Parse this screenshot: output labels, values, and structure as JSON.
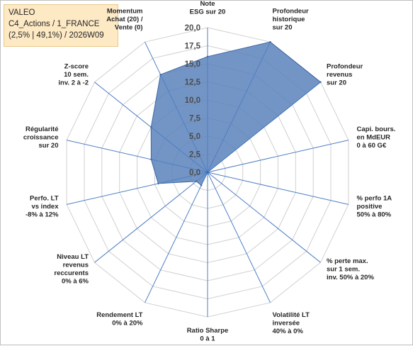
{
  "info": {
    "name": "VALEO",
    "line2": "C4_Actions / 1_FRANCE",
    "line3": "(2,5% | 49,1%) / 2026W09"
  },
  "chart_data": {
    "type": "radar",
    "axes": [
      [
        "Note",
        "ESG sur 20"
      ],
      [
        "Profondeur",
        "historique",
        "sur 20"
      ],
      [
        "Profondeur",
        "revenus",
        "sur 20"
      ],
      [
        "Capi. bours.",
        "en MdEUR",
        "0 à 60 G€"
      ],
      [
        "% perfo 1A",
        "positive",
        "50% à 80%"
      ],
      [
        "% perte max.",
        "sur 1 sem.",
        "inv. 50% à 20%"
      ],
      [
        "Volatilité LT",
        "inversée",
        "40% à 0%"
      ],
      [
        "Ratio Sharpe",
        "0 à 1"
      ],
      [
        "Rendement LT",
        "0% à 20%"
      ],
      [
        "Niveau LT",
        "revenus",
        "reccurents",
        "0% à 6%"
      ],
      [
        "Perfo. LT",
        "vs index",
        "-8% à 12%"
      ],
      [
        "Régularité",
        "croissance",
        "sur 20"
      ],
      [
        "Z-score",
        "10 sem.",
        "inv. 2 à -2"
      ],
      [
        "Momentum",
        "Achat (20) /",
        "Vente (0)"
      ]
    ],
    "values": [
      16,
      20,
      20,
      0,
      0,
      0,
      0,
      0,
      2,
      2,
      7,
      8,
      10,
      15
    ],
    "range": [
      0,
      20
    ],
    "ticks": [
      "0,0",
      "2,5",
      "5,0",
      "7,5",
      "10,0",
      "12,5",
      "15,0",
      "17,5",
      "20,0"
    ],
    "colors": {
      "fill": "#5b82bb",
      "stroke": "#3d66a3",
      "grid": "#d0d0d0",
      "spoke": "#4f7fc4"
    }
  }
}
